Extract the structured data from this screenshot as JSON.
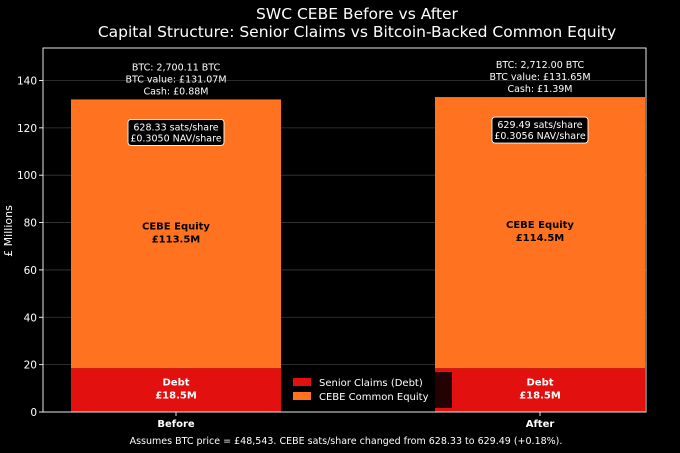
{
  "chart_data": {
    "type": "bar",
    "stacked": true,
    "title": "SWC CEBE Before vs After",
    "subtitle": "Capital Structure: Senior Claims vs Bitcoin-Backed Common Equity",
    "ylabel": "£ Millions",
    "xlabel": "",
    "ylim": [
      0,
      152
    ],
    "yticks": [
      0,
      20,
      40,
      60,
      80,
      100,
      120,
      140
    ],
    "grid": true,
    "legend_position": "lower-center",
    "categories": [
      "Before",
      "After"
    ],
    "series": [
      {
        "name": "Senior Claims (Debt)",
        "color": "#e31010",
        "values": [
          18.5,
          18.5
        ],
        "labels": [
          [
            "Debt",
            "£18.5M"
          ],
          [
            "Debt",
            "£18.5M"
          ]
        ]
      },
      {
        "name": "CEBE Common Equity",
        "color": "#ff7220",
        "values": [
          113.5,
          114.5
        ],
        "labels": [
          [
            "CEBE Equity",
            "£113.5M"
          ],
          [
            "CEBE Equity",
            "£114.5M"
          ]
        ]
      }
    ],
    "annotations": [
      {
        "top": [
          "BTC: 2,700.11 BTC",
          "BTC value: £131.07M",
          "Cash: £0.88M"
        ],
        "box": [
          "628.33 sats/share",
          "£0.3050 NAV/share"
        ]
      },
      {
        "top": [
          "BTC: 2,712.00 BTC",
          "BTC value: £131.65M",
          "Cash: £1.39M"
        ],
        "box": [
          "629.49 sats/share",
          "£0.3056 NAV/share"
        ]
      }
    ],
    "footnote": "Assumes BTC price = £48,543. CEBE sats/share changed from 628.33 to 629.49 (+0.18%)."
  }
}
